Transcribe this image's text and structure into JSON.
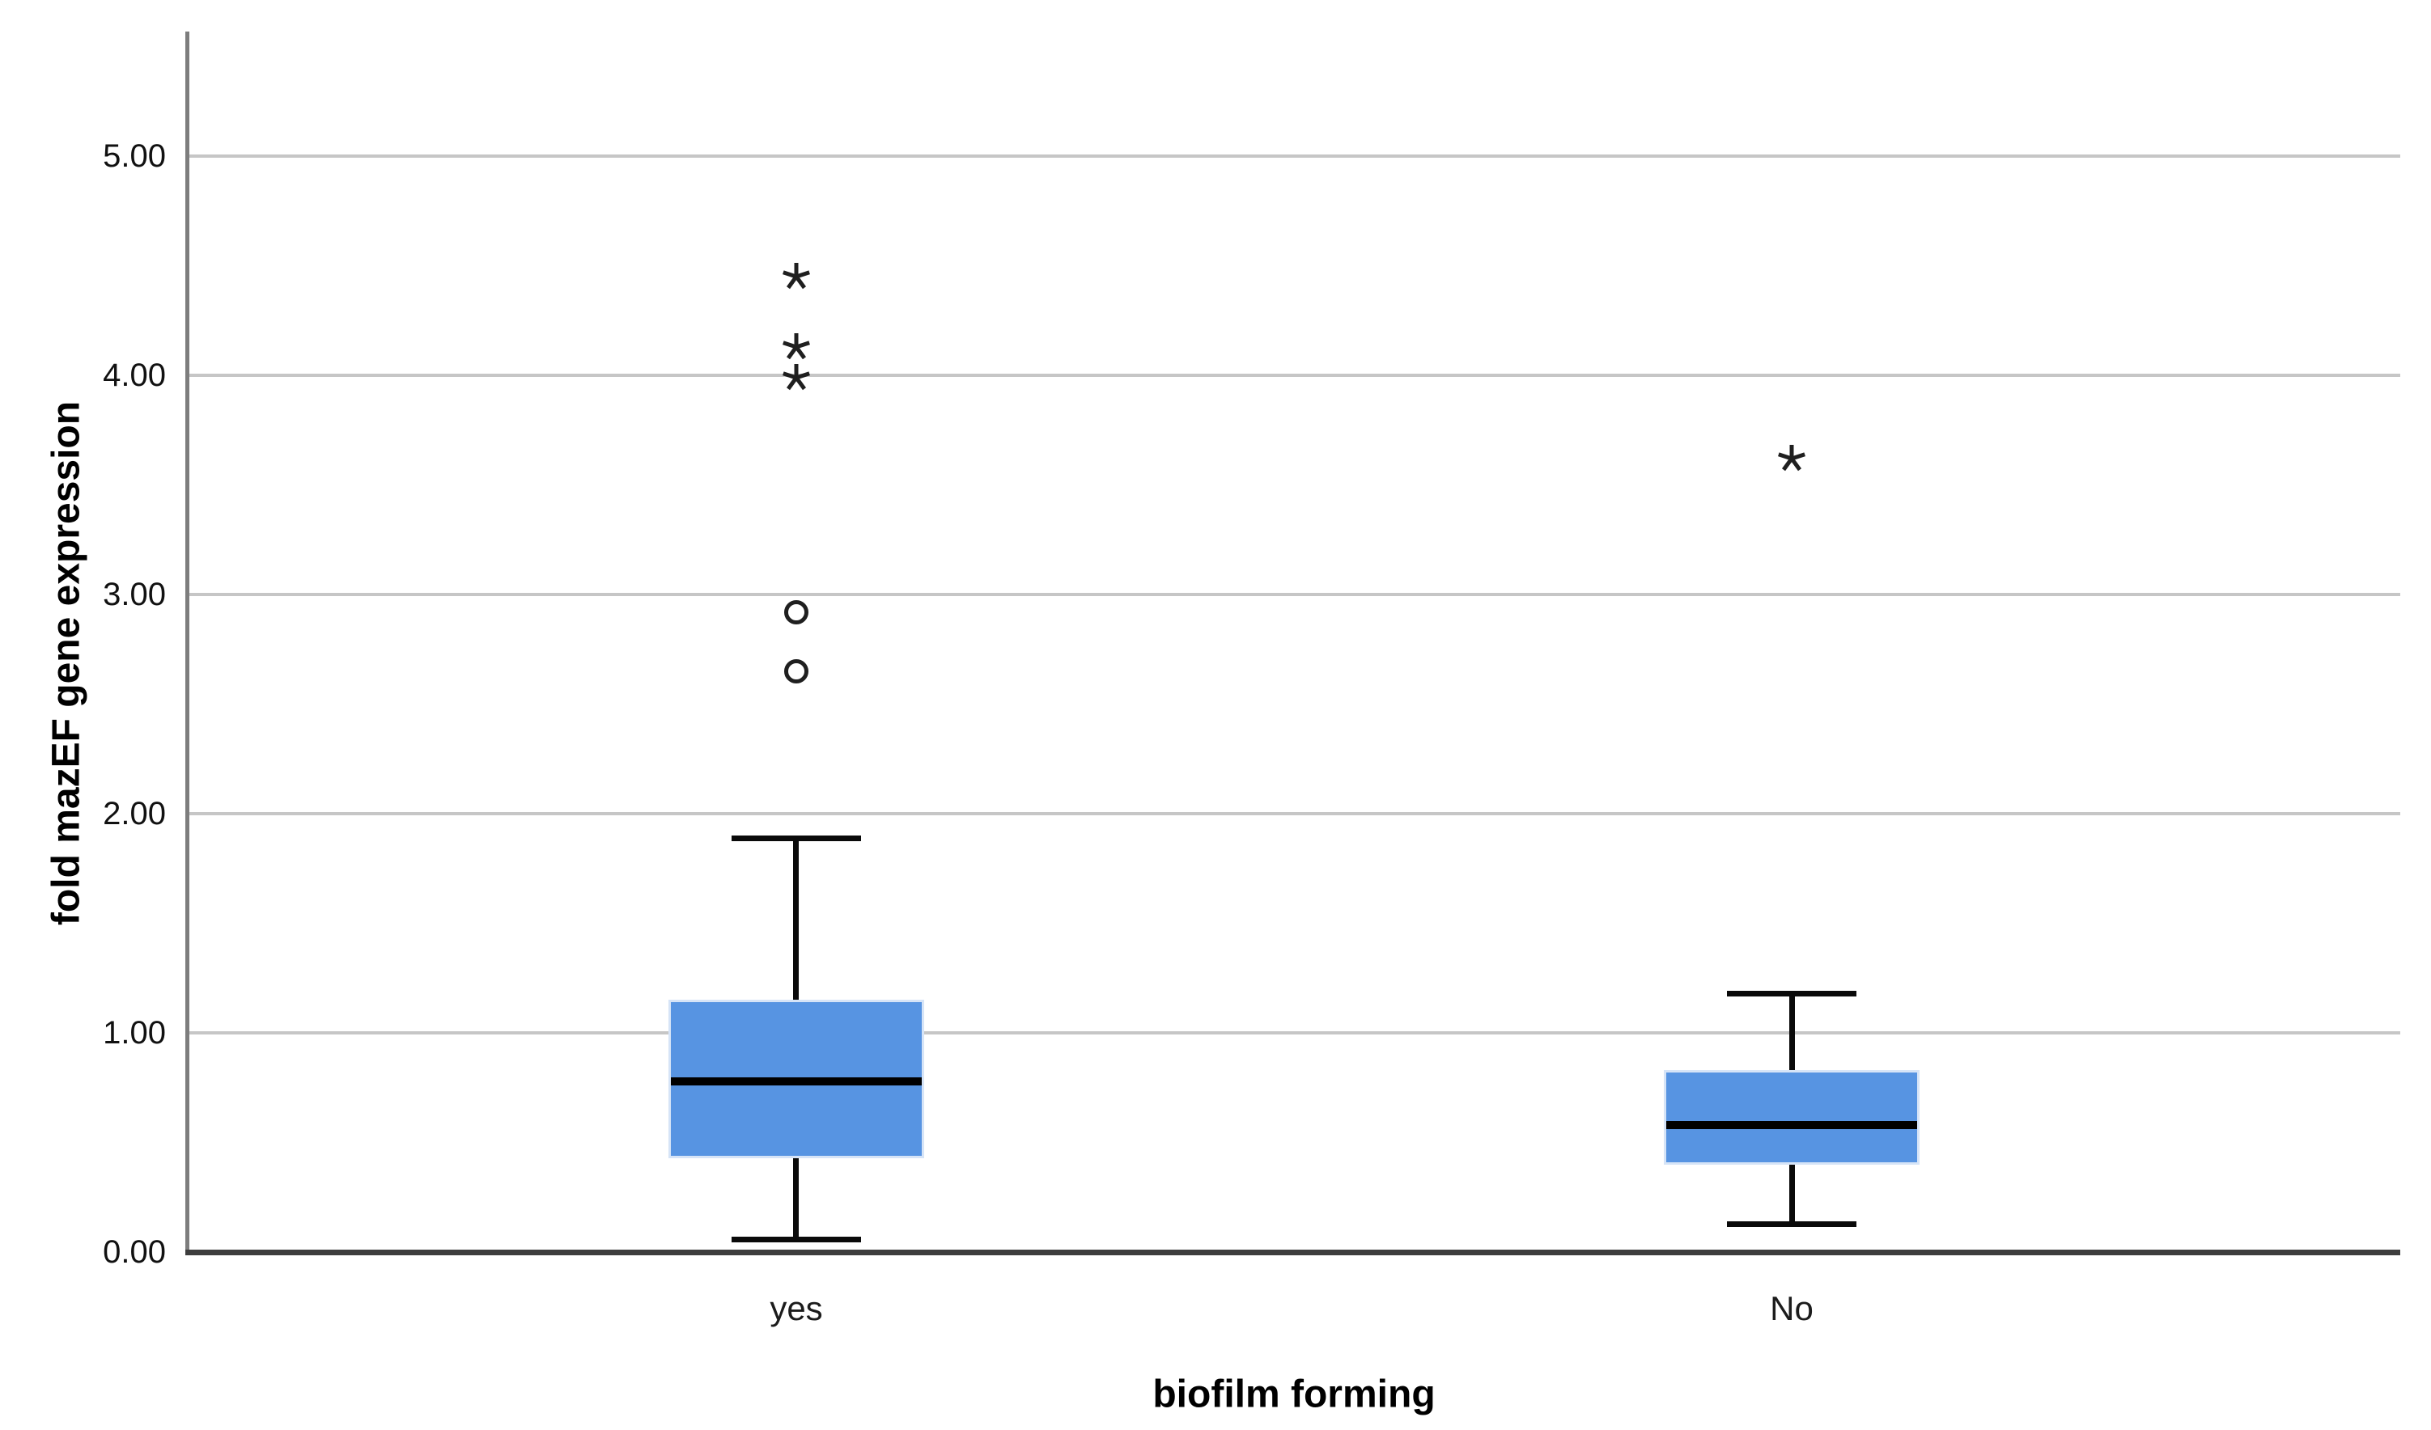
{
  "chart_data": {
    "type": "boxplot",
    "title": "",
    "xlabel": "biofilm forming",
    "ylabel": "fold mazEF gene expression",
    "categories": [
      "yes",
      "No"
    ],
    "ylim": [
      0,
      5.57
    ],
    "ytick_values": [
      0,
      1,
      2,
      3,
      4,
      5
    ],
    "ytick_labels": [
      "0.00",
      "1.00",
      "2.00",
      "3.00",
      "4.00",
      "5.00"
    ],
    "gridlines": true,
    "legend": "none",
    "series": [
      {
        "category": "yes",
        "whisker_low": 0.06,
        "q1": 0.44,
        "median": 0.78,
        "q3": 1.14,
        "whisker_high": 1.89,
        "outliers_circle": [
          2.65,
          2.92
        ],
        "outliers_extreme": [
          3.99,
          4.13,
          4.45
        ]
      },
      {
        "category": "No",
        "whisker_low": 0.13,
        "q1": 0.41,
        "median": 0.58,
        "q3": 0.82,
        "whisker_high": 1.18,
        "outliers_circle": [],
        "outliers_extreme": [
          3.62
        ]
      }
    ],
    "colors": {
      "box_fill": "#5794E2",
      "box_halo": "#d6e4f7",
      "median_line": "#000000",
      "whisker": "#0a0a0a",
      "outlier_marker": "#1f1f1f",
      "gridline": "#c6c6c6",
      "y_axis_line": "#7d7d7d",
      "bottom_frame": "#3d3d3d",
      "tick_text": "#111111",
      "category_text": "#1c1c1c",
      "title_text": "#000000"
    }
  }
}
